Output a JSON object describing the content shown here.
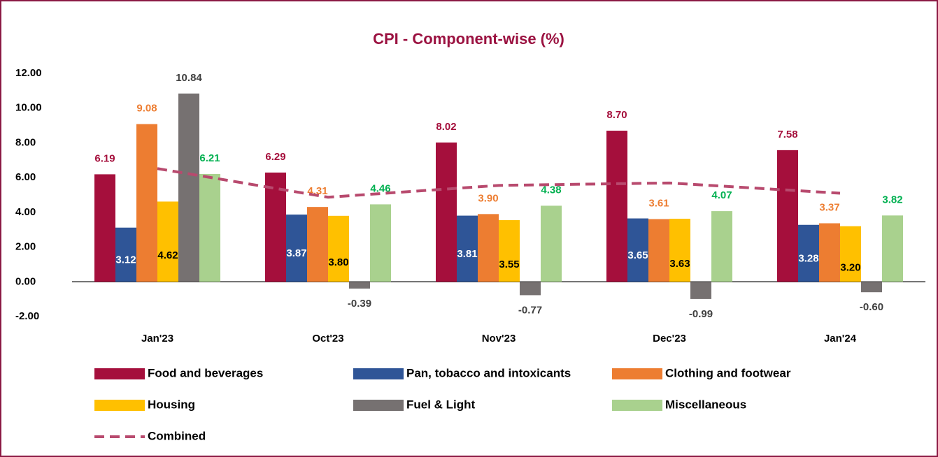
{
  "chart_data": {
    "type": "bar",
    "title": "CPI - Component-wise (%)",
    "categories": [
      "Jan'23",
      "Oct'23",
      "Nov'23",
      "Dec'23",
      "Jan'24"
    ],
    "ylim": [
      -2,
      12
    ],
    "yticks": [
      {
        "value": -2,
        "label": "-2.00"
      },
      {
        "value": 0,
        "label": "0.00"
      },
      {
        "value": 2,
        "label": "2.00"
      },
      {
        "value": 4,
        "label": "4.00"
      },
      {
        "value": 6,
        "label": "6.00"
      },
      {
        "value": 8,
        "label": "8.00"
      },
      {
        "value": 10,
        "label": "10.00"
      },
      {
        "value": 12,
        "label": "12.00"
      }
    ],
    "series": [
      {
        "name": "Food and beverages",
        "color": "#a50f3c",
        "label_color": "#a50f3c",
        "values": [
          6.19,
          6.29,
          8.02,
          8.7,
          7.58
        ],
        "value_labels": [
          "6.19",
          "6.29",
          "8.02",
          "8.70",
          "7.58"
        ]
      },
      {
        "name": "Pan, tobacco and intoxicants",
        "color": "#2f5597",
        "label_color": "#ffffff",
        "values": [
          3.12,
          3.87,
          3.81,
          3.65,
          3.28
        ],
        "value_labels": [
          "3.12",
          "3.87",
          "3.81",
          "3.65",
          "3.28"
        ]
      },
      {
        "name": "Clothing and footwear",
        "color": "#ed7d31",
        "label_color": "#ed7d31",
        "values": [
          9.08,
          4.31,
          3.9,
          3.61,
          3.37
        ],
        "value_labels": [
          "9.08",
          "4.31",
          "3.90",
          "3.61",
          "3.37"
        ]
      },
      {
        "name": "Housing",
        "color": "#ffc000",
        "label_color": "#000000",
        "values": [
          4.62,
          3.8,
          3.55,
          3.63,
          3.2
        ],
        "value_labels": [
          "4.62",
          "3.80",
          "3.55",
          "3.63",
          "3.20"
        ]
      },
      {
        "name": "Fuel & Light",
        "color": "#767171",
        "label_color": "#404040",
        "values": [
          10.84,
          -0.39,
          -0.77,
          -0.99,
          -0.6
        ],
        "value_labels": [
          "10.84",
          "-0.39",
          "-0.77",
          "-0.99",
          "-0.60"
        ]
      },
      {
        "name": "Miscellaneous",
        "color": "#a9d18e",
        "label_color": "#00b050",
        "values": [
          6.21,
          4.46,
          4.38,
          4.07,
          3.82
        ],
        "value_labels": [
          "6.21",
          "4.46",
          "4.38",
          "4.07",
          "3.82"
        ]
      },
      {
        "name": "Combined",
        "type": "line",
        "color": "#b84a6e",
        "dashed": true,
        "values": [
          6.52,
          4.87,
          5.55,
          5.69,
          5.1
        ]
      }
    ]
  }
}
